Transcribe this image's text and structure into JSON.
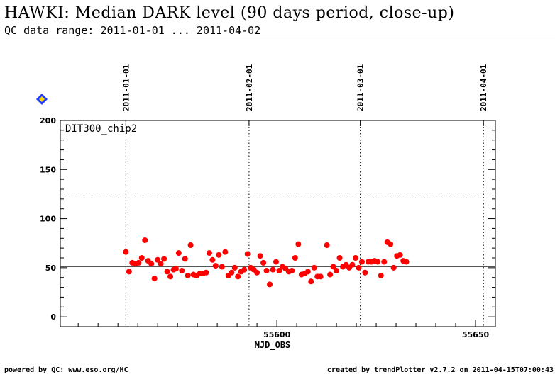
{
  "header": {
    "title": "HAWKI: Median DARK level (90 days period, close-up)",
    "subtitle": "QC data range: 2011-01-01 ... 2011-04-02"
  },
  "footer": {
    "left": "powered by QC: www.eso.org/HC",
    "right": "created by trendPlotter v2.7.2 on 2011-04-15T07:00:43"
  },
  "colors": {
    "points": "#ff0000",
    "axes": "#000000",
    "marker_fill": "#1e3cff",
    "marker_ring": "#ffd700"
  },
  "chart_data": {
    "type": "scatter",
    "series_label": "DIT300_chip2",
    "xlabel": "MJD_OBS",
    "xlim": [
      55545.5,
      55655.0
    ],
    "ylim": [
      -10,
      200
    ],
    "x_ticks": [
      55600,
      55650
    ],
    "y_ticks": [
      0,
      50,
      100,
      150,
      200
    ],
    "date_ticks": [
      {
        "label": "2011-01-01",
        "mjd": 55562
      },
      {
        "label": "2011-02-01",
        "mjd": 55593
      },
      {
        "label": "2011-03-01",
        "mjd": 55621
      },
      {
        "label": "2011-04-01",
        "mjd": 55652
      }
    ],
    "reference_lines": {
      "median": 51,
      "threshold": 121
    },
    "points": [
      [
        55562.0,
        66
      ],
      [
        55562.8,
        46
      ],
      [
        55563.6,
        55
      ],
      [
        55564.4,
        54
      ],
      [
        55565.2,
        55
      ],
      [
        55566.0,
        60
      ],
      [
        55566.8,
        78
      ],
      [
        55567.6,
        57
      ],
      [
        55568.4,
        54
      ],
      [
        55569.2,
        39
      ],
      [
        55570.0,
        58
      ],
      [
        55570.8,
        54
      ],
      [
        55571.6,
        59
      ],
      [
        55572.4,
        46
      ],
      [
        55573.2,
        41
      ],
      [
        55574.0,
        48
      ],
      [
        55574.6,
        49
      ],
      [
        55575.3,
        65
      ],
      [
        55576.1,
        47
      ],
      [
        55576.9,
        59
      ],
      [
        55577.6,
        42
      ],
      [
        55578.3,
        73
      ],
      [
        55579.0,
        43
      ],
      [
        55579.8,
        42
      ],
      [
        55580.6,
        44
      ],
      [
        55581.4,
        44
      ],
      [
        55582.2,
        45
      ],
      [
        55583.0,
        65
      ],
      [
        55583.8,
        58
      ],
      [
        55584.6,
        52
      ],
      [
        55585.4,
        63
      ],
      [
        55586.2,
        51
      ],
      [
        55587.0,
        66
      ],
      [
        55587.8,
        42
      ],
      [
        55588.6,
        45
      ],
      [
        55589.4,
        50
      ],
      [
        55590.2,
        41
      ],
      [
        55591.0,
        46
      ],
      [
        55591.8,
        48
      ],
      [
        55592.6,
        64
      ],
      [
        55593.4,
        50
      ],
      [
        55594.2,
        48
      ],
      [
        55595.0,
        45
      ],
      [
        55595.8,
        62
      ],
      [
        55596.6,
        55
      ],
      [
        55597.4,
        47
      ],
      [
        55598.2,
        33
      ],
      [
        55599.0,
        48
      ],
      [
        55599.8,
        56
      ],
      [
        55600.6,
        47
      ],
      [
        55601.4,
        51
      ],
      [
        55602.2,
        49
      ],
      [
        55603.0,
        46
      ],
      [
        55603.8,
        47
      ],
      [
        55604.6,
        60
      ],
      [
        55605.4,
        74
      ],
      [
        55606.2,
        43
      ],
      [
        55607.0,
        44
      ],
      [
        55607.8,
        46
      ],
      [
        55608.6,
        36
      ],
      [
        55609.4,
        50
      ],
      [
        55610.2,
        41
      ],
      [
        55611.0,
        41
      ],
      [
        55612.6,
        73
      ],
      [
        55613.4,
        43
      ],
      [
        55614.2,
        51
      ],
      [
        55615.0,
        47
      ],
      [
        55615.8,
        60
      ],
      [
        55616.6,
        51
      ],
      [
        55617.4,
        53
      ],
      [
        55618.2,
        50
      ],
      [
        55619.0,
        53
      ],
      [
        55619.8,
        60
      ],
      [
        55620.6,
        50
      ],
      [
        55621.4,
        56
      ],
      [
        55622.2,
        45
      ],
      [
        55623.0,
        56
      ],
      [
        55623.8,
        56
      ],
      [
        55624.6,
        57
      ],
      [
        55625.4,
        56
      ],
      [
        55626.2,
        42
      ],
      [
        55627.0,
        56
      ],
      [
        55627.8,
        76
      ],
      [
        55628.6,
        74
      ],
      [
        55629.4,
        50
      ],
      [
        55630.2,
        62
      ],
      [
        55631.0,
        63
      ],
      [
        55631.8,
        57
      ],
      [
        55632.6,
        56
      ]
    ]
  }
}
